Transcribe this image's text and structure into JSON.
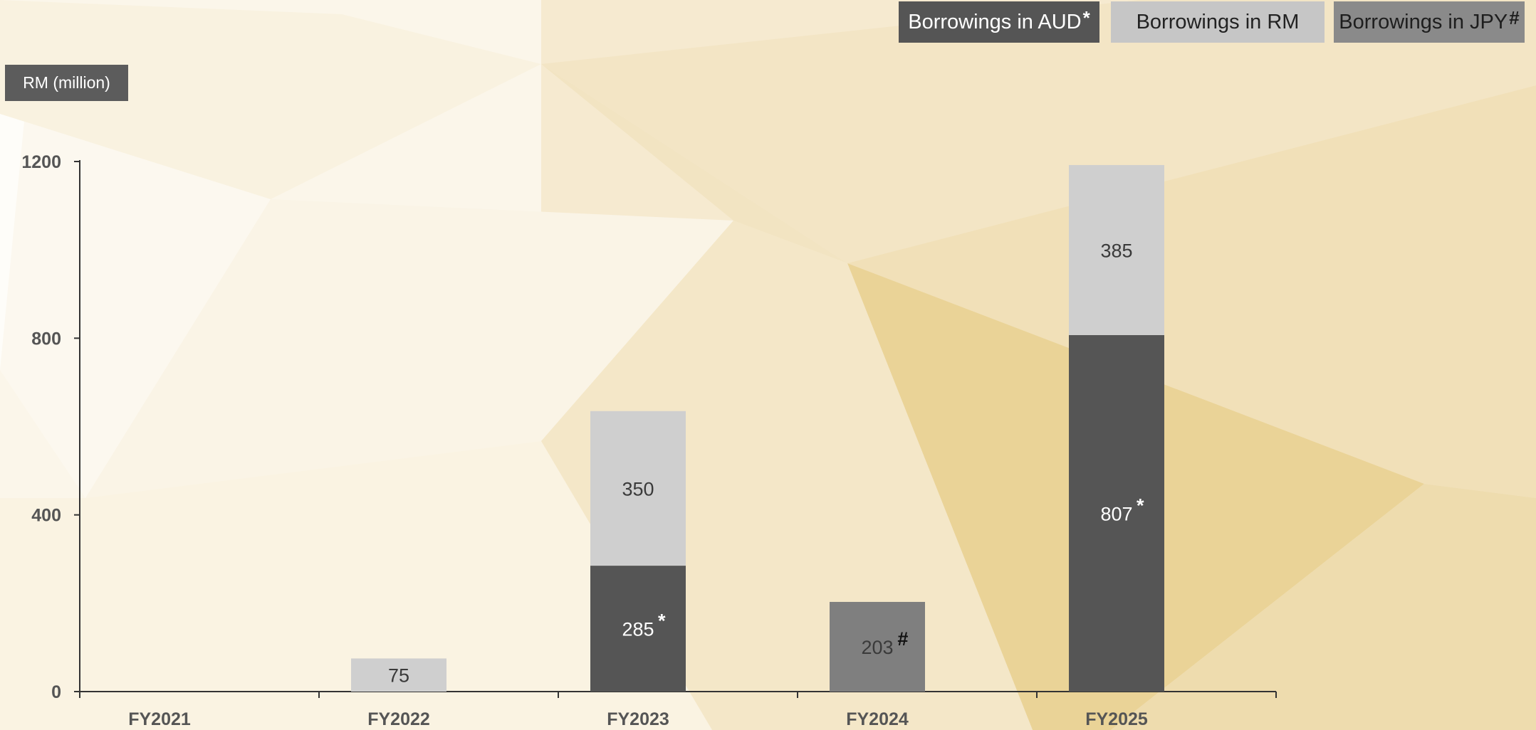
{
  "legend": {
    "aud": {
      "label": "Borrowings in AUD",
      "marker": "*"
    },
    "rm": {
      "label": "Borrowings in RM",
      "marker": ""
    },
    "jpy": {
      "label": "Borrowings in JPY",
      "marker": "#"
    }
  },
  "unit_label": "RM (million)",
  "colors": {
    "aud": "#555555",
    "rm": "#cfcfcf",
    "jpy": "#7f7f7f",
    "axis": "#333333",
    "label_dark": "#ffffff",
    "label_light": "#3a3a3a"
  },
  "chart_data": {
    "type": "bar",
    "stacked": true,
    "categories": [
      "FY2021",
      "FY2022",
      "FY2023",
      "FY2024",
      "FY2025"
    ],
    "series": [
      {
        "key": "aud",
        "name": "Borrowings in AUD",
        "values": [
          0,
          0,
          285,
          0,
          807
        ],
        "marker": "*"
      },
      {
        "key": "jpy",
        "name": "Borrowings in JPY",
        "values": [
          0,
          0,
          0,
          203,
          0
        ],
        "marker": "#"
      },
      {
        "key": "rm",
        "name": "Borrowings in RM",
        "values": [
          0,
          75,
          350,
          0,
          385
        ],
        "marker": ""
      }
    ],
    "yticks": [
      0,
      400,
      800,
      1200
    ],
    "ylim": [
      0,
      1200
    ],
    "ylabel": "RM (million)",
    "xlabel": "",
    "grid": false,
    "legend_position": "top-right"
  }
}
